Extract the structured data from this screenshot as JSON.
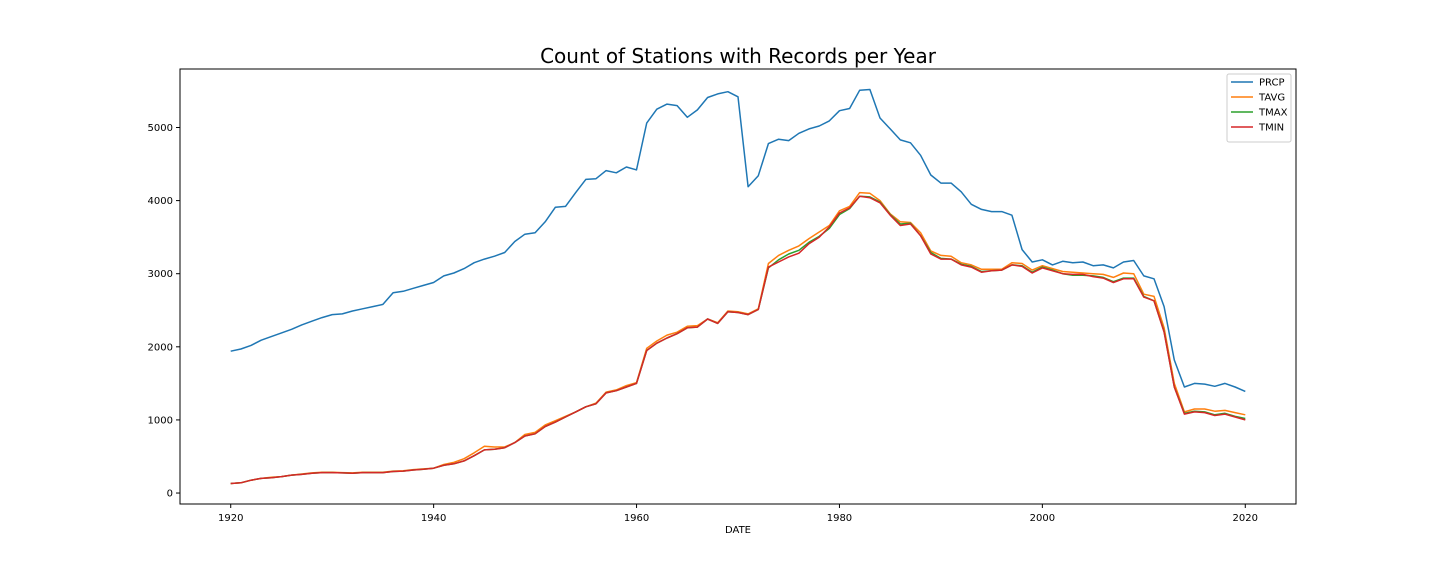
{
  "chart_data": {
    "type": "line",
    "title": "Count of Stations with Records per Year",
    "xlabel": "DATE",
    "ylabel": "",
    "xlim": [
      1915,
      2025
    ],
    "ylim": [
      -150,
      5800
    ],
    "x_ticks": [
      1920,
      1940,
      1960,
      1980,
      2000,
      2020
    ],
    "y_ticks": [
      0,
      1000,
      2000,
      3000,
      4000,
      5000
    ],
    "grid": false,
    "legend_position": "top-right",
    "x": [
      1920,
      1921,
      1922,
      1923,
      1924,
      1925,
      1926,
      1927,
      1928,
      1929,
      1930,
      1931,
      1932,
      1933,
      1934,
      1935,
      1936,
      1937,
      1938,
      1939,
      1940,
      1941,
      1942,
      1943,
      1944,
      1945,
      1946,
      1947,
      1948,
      1949,
      1950,
      1951,
      1952,
      1953,
      1954,
      1955,
      1956,
      1957,
      1958,
      1959,
      1960,
      1961,
      1962,
      1963,
      1964,
      1965,
      1966,
      1967,
      1968,
      1969,
      1970,
      1971,
      1972,
      1973,
      1974,
      1975,
      1976,
      1977,
      1978,
      1979,
      1980,
      1981,
      1982,
      1983,
      1984,
      1985,
      1986,
      1987,
      1988,
      1989,
      1990,
      1991,
      1992,
      1993,
      1994,
      1995,
      1996,
      1997,
      1998,
      1999,
      2000,
      2001,
      2002,
      2003,
      2004,
      2005,
      2006,
      2007,
      2008,
      2009,
      2010,
      2011,
      2012,
      2013,
      2014,
      2015,
      2016,
      2017,
      2018,
      2019,
      2020
    ],
    "series": [
      {
        "name": "PRCP",
        "color": "#1f77b4",
        "values": [
          1940,
          1970,
          2020,
          2090,
          2140,
          2190,
          2240,
          2300,
          2350,
          2400,
          2440,
          2450,
          2490,
          2520,
          2550,
          2580,
          2740,
          2760,
          2800,
          2840,
          2880,
          2970,
          3010,
          3070,
          3150,
          3200,
          3240,
          3290,
          3440,
          3540,
          3560,
          3710,
          3910,
          3920,
          4110,
          4290,
          4300,
          4410,
          4380,
          4460,
          4420,
          5060,
          5250,
          5320,
          5300,
          5140,
          5240,
          5410,
          5460,
          5490,
          5420,
          4190,
          4340,
          4780,
          4840,
          4820,
          4920,
          4980,
          5020,
          5090,
          5230,
          5260,
          5510,
          5520,
          5130,
          4980,
          4830,
          4790,
          4620,
          4350,
          4240,
          4240,
          4120,
          3950,
          3880,
          3850,
          3850,
          3800,
          3330,
          3160,
          3190,
          3120,
          3170,
          3150,
          3160,
          3110,
          3120,
          3080,
          3160,
          3180,
          2970,
          2930,
          2550,
          1820,
          1450,
          1500,
          1490,
          1460,
          1500,
          1450,
          1390
        ]
      },
      {
        "name": "TAVG",
        "color": "#ff7f0e",
        "values": [
          130,
          140,
          175,
          200,
          215,
          225,
          245,
          260,
          275,
          285,
          285,
          280,
          275,
          285,
          285,
          285,
          300,
          305,
          320,
          330,
          340,
          390,
          420,
          470,
          550,
          640,
          630,
          630,
          690,
          800,
          830,
          930,
          990,
          1050,
          1110,
          1180,
          1230,
          1380,
          1410,
          1470,
          1510,
          1980,
          2080,
          2160,
          2200,
          2280,
          2290,
          2380,
          2330,
          2490,
          2480,
          2450,
          2520,
          3140,
          3250,
          3320,
          3380,
          3480,
          3570,
          3660,
          3860,
          3920,
          4110,
          4100,
          4000,
          3820,
          3710,
          3700,
          3560,
          3310,
          3250,
          3240,
          3150,
          3120,
          3060,
          3060,
          3060,
          3150,
          3140,
          3050,
          3110,
          3070,
          3030,
          3020,
          3010,
          3000,
          2990,
          2950,
          3010,
          3000,
          2720,
          2690,
          2260,
          1500,
          1110,
          1150,
          1150,
          1120,
          1130,
          1100,
          1070
        ]
      },
      {
        "name": "TMAX",
        "color": "#2ca02c",
        "values": [
          130,
          140,
          175,
          200,
          210,
          225,
          245,
          255,
          270,
          280,
          280,
          275,
          270,
          280,
          280,
          280,
          295,
          300,
          315,
          325,
          340,
          380,
          400,
          440,
          510,
          590,
          600,
          620,
          690,
          780,
          810,
          910,
          970,
          1040,
          1110,
          1180,
          1220,
          1370,
          1400,
          1450,
          1500,
          1950,
          2050,
          2120,
          2180,
          2260,
          2270,
          2380,
          2320,
          2480,
          2470,
          2440,
          2510,
          3080,
          3190,
          3270,
          3320,
          3430,
          3510,
          3620,
          3810,
          3890,
          4060,
          4050,
          3980,
          3810,
          3680,
          3690,
          3520,
          3290,
          3210,
          3200,
          3130,
          3100,
          3030,
          3040,
          3050,
          3120,
          3110,
          3020,
          3090,
          3050,
          3000,
          2980,
          2980,
          2970,
          2950,
          2890,
          2940,
          2940,
          2690,
          2630,
          2210,
          1450,
          1090,
          1120,
          1110,
          1070,
          1090,
          1050,
          1020
        ]
      },
      {
        "name": "TMIN",
        "color": "#d62728",
        "values": [
          130,
          140,
          175,
          200,
          210,
          225,
          245,
          255,
          270,
          280,
          280,
          275,
          270,
          280,
          280,
          280,
          295,
          300,
          315,
          325,
          340,
          380,
          400,
          440,
          510,
          590,
          600,
          620,
          690,
          780,
          810,
          910,
          970,
          1040,
          1110,
          1180,
          1220,
          1370,
          1400,
          1450,
          1500,
          1950,
          2050,
          2120,
          2180,
          2260,
          2270,
          2380,
          2320,
          2480,
          2470,
          2440,
          2510,
          3090,
          3160,
          3230,
          3280,
          3410,
          3500,
          3640,
          3830,
          3900,
          4060,
          4040,
          3970,
          3800,
          3660,
          3680,
          3520,
          3270,
          3200,
          3200,
          3120,
          3090,
          3020,
          3040,
          3050,
          3120,
          3100,
          3010,
          3080,
          3040,
          3000,
          2990,
          2990,
          2960,
          2940,
          2880,
          2930,
          2930,
          2680,
          2630,
          2200,
          1450,
          1080,
          1110,
          1100,
          1060,
          1080,
          1040,
          1000
        ]
      }
    ]
  }
}
